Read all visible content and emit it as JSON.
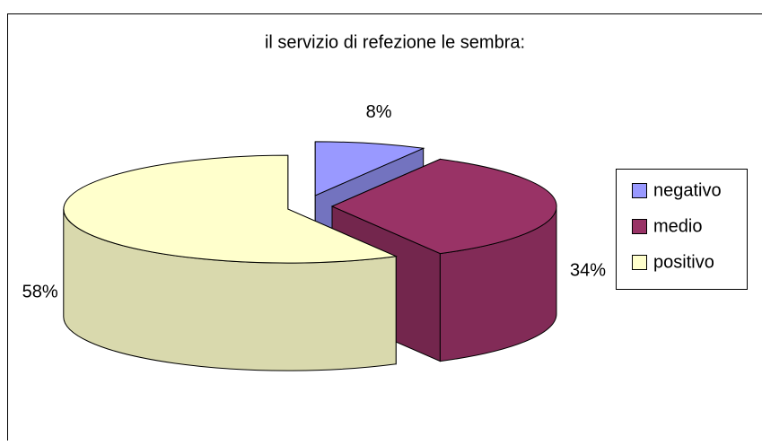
{
  "chart_data": {
    "type": "pie",
    "title": "il servizio di refezione le sembra:",
    "categories": [
      "negativo",
      "medio",
      "positivo"
    ],
    "values": [
      8,
      34,
      58
    ],
    "value_labels": [
      "8%",
      "34%",
      "58%"
    ],
    "colors": [
      "#9999ff",
      "#993366",
      "#ffffcc"
    ],
    "legend": "right"
  }
}
